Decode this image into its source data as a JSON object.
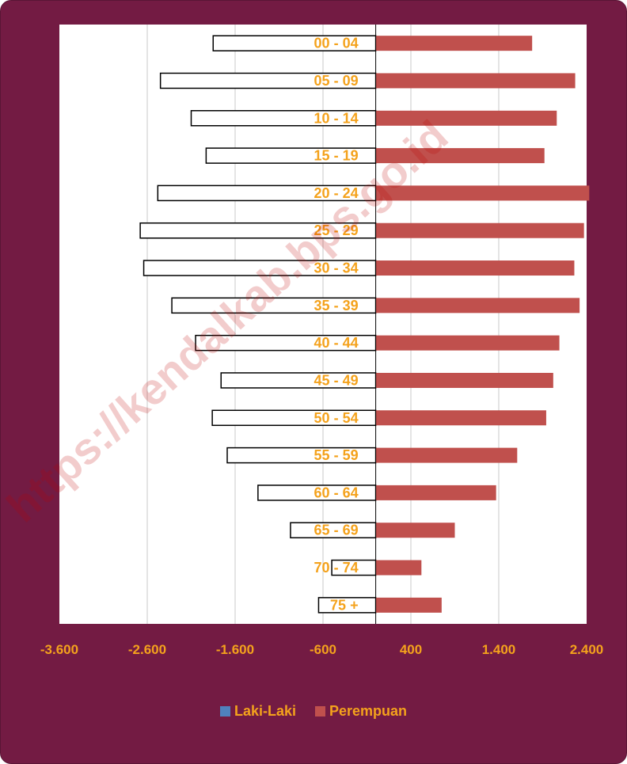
{
  "chart_data": {
    "type": "bar",
    "orientation": "horizontal",
    "subtype": "population-pyramid",
    "categories": [
      "00 - 04",
      "05 - 09",
      "10 - 14",
      "15 - 19",
      "20 - 24",
      "25 - 29",
      "30 - 34",
      "35 - 39",
      "40 - 44",
      "45 - 49",
      "50 - 54",
      "55 - 59",
      "60 - 64",
      "65 - 69",
      "70 - 74",
      "75 +"
    ],
    "series": [
      {
        "name": "Laki-Laki",
        "color": "#4f81bd",
        "values": [
          -1850,
          -2450,
          -2100,
          -1930,
          -2480,
          -2680,
          -2640,
          -2320,
          -2050,
          -1760,
          -1860,
          -1690,
          -1340,
          -970,
          -500,
          -650
        ]
      },
      {
        "name": "Perempuan",
        "color": "#c0504d",
        "values": [
          1780,
          2270,
          2060,
          1920,
          2430,
          2370,
          2260,
          2320,
          2090,
          2020,
          1940,
          1610,
          1370,
          900,
          520,
          750
        ]
      }
    ],
    "x_ticks": [
      "-3.600",
      "-2.600",
      "-1.600",
      "-600",
      "400",
      "1.400",
      "2.400"
    ],
    "x_tick_values": [
      -3600,
      -2600,
      -1600,
      -600,
      400,
      1400,
      2400
    ],
    "xlim": [
      -3600,
      2400
    ],
    "grid": true,
    "legend_position": "bottom",
    "label_color": "#f4a21c",
    "frame_color": "#731b43",
    "watermark": "https://kendalkab.bps.go.id"
  }
}
